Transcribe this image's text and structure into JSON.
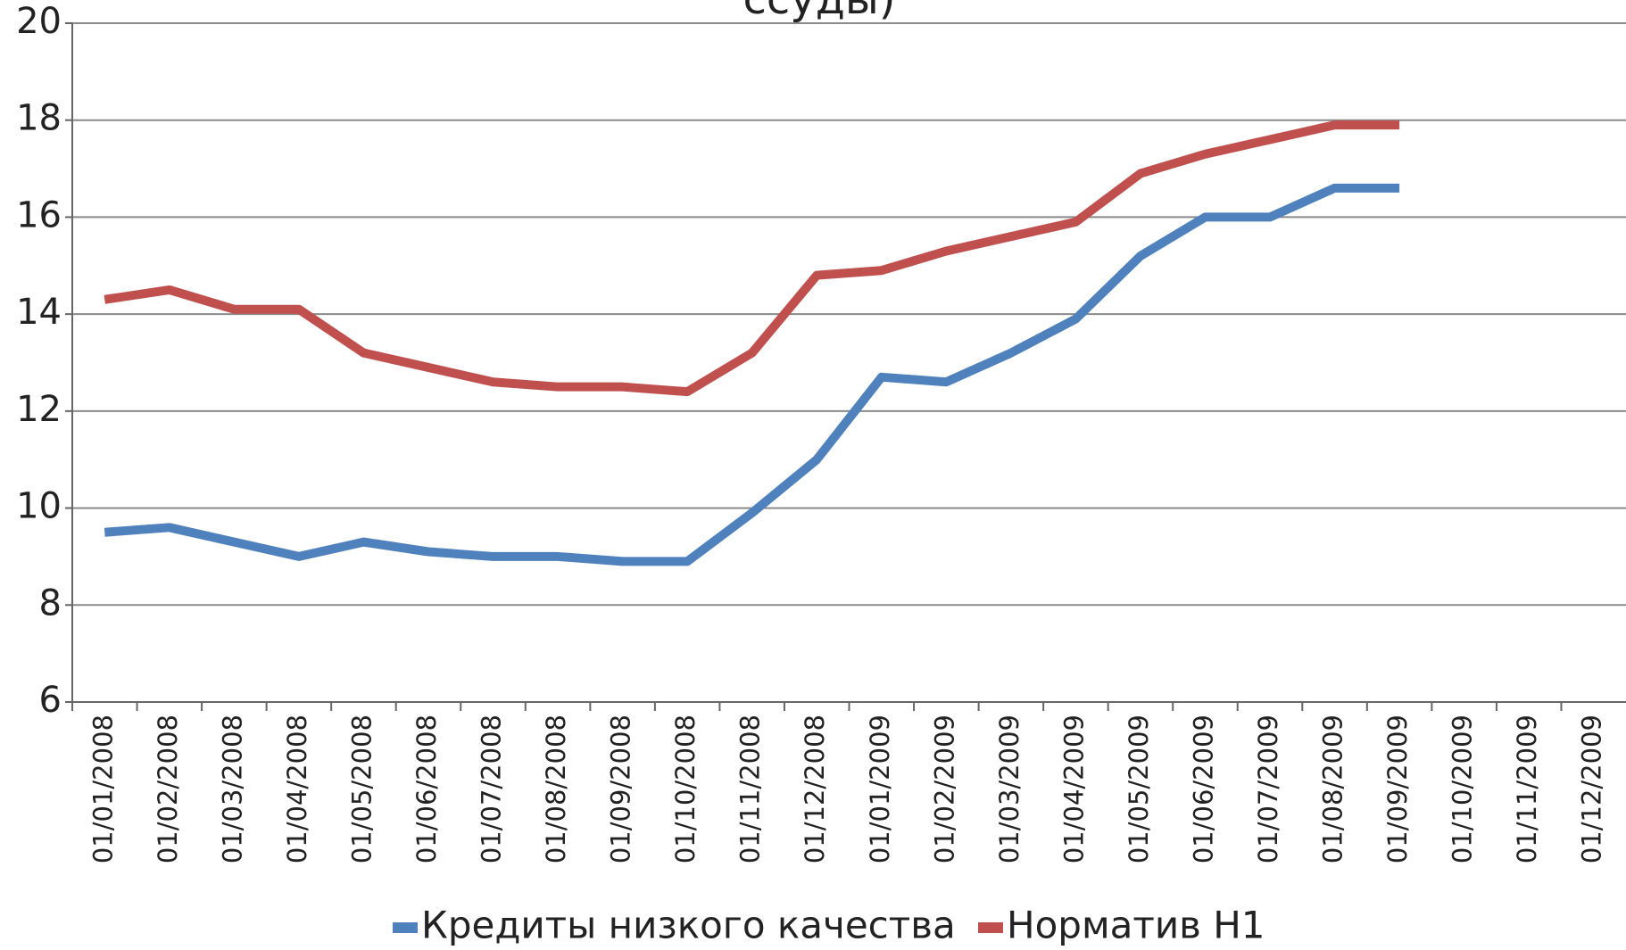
{
  "chart_data": {
    "type": "line",
    "title": "ссуды)",
    "categories": [
      "01/01/2008",
      "01/02/2008",
      "01/03/2008",
      "01/04/2008",
      "01/05/2008",
      "01/06/2008",
      "01/07/2008",
      "01/08/2008",
      "01/09/2008",
      "01/10/2008",
      "01/11/2008",
      "01/12/2008",
      "01/01/2009",
      "01/02/2009",
      "01/03/2009",
      "01/04/2009",
      "01/05/2009",
      "01/06/2009",
      "01/07/2009",
      "01/08/2009",
      "01/09/2009",
      "01/10/2009",
      "01/11/2009",
      "01/12/2009"
    ],
    "series": [
      {
        "name": "Кредиты низкого качества",
        "color": "#4f81bd",
        "values": [
          9.5,
          9.6,
          9.3,
          9.0,
          9.3,
          9.1,
          9.0,
          9.0,
          8.9,
          8.9,
          9.9,
          11.0,
          12.7,
          12.6,
          13.2,
          13.9,
          15.2,
          16.0,
          16.0,
          16.6,
          16.6,
          null,
          null,
          null
        ]
      },
      {
        "name": "Норматив Н1",
        "color": "#c0504d",
        "values": [
          14.3,
          14.5,
          14.1,
          14.1,
          13.2,
          12.9,
          12.6,
          12.5,
          12.5,
          12.4,
          13.2,
          14.8,
          14.9,
          15.3,
          15.6,
          15.9,
          16.9,
          17.3,
          17.6,
          17.9,
          17.9,
          null,
          null,
          null
        ]
      }
    ],
    "ylim": [
      6,
      20
    ],
    "yticks": [
      6,
      8,
      10,
      12,
      14,
      16,
      18,
      20
    ],
    "grid": true,
    "legend": "bottom"
  }
}
